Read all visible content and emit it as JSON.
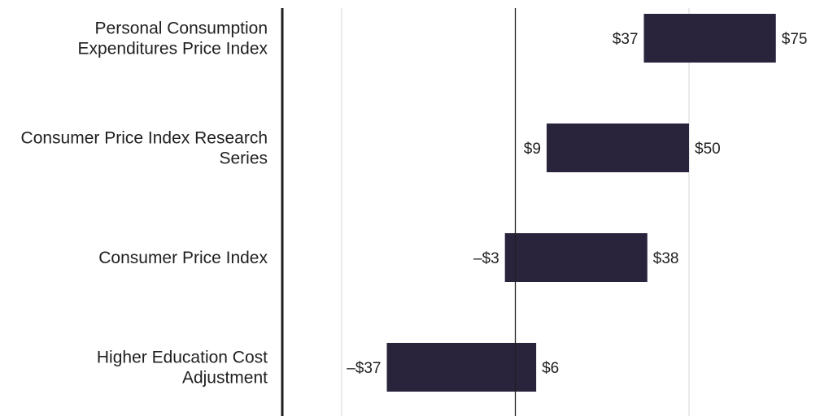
{
  "chart_data": {
    "type": "bar",
    "orientation": "horizontal",
    "subtype": "range",
    "categories": [
      [
        "Personal Consumption",
        "Expenditures Price Index"
      ],
      [
        "Consumer Price Index Research",
        "Series"
      ],
      [
        "Consumer Price Index"
      ],
      [
        "Higher Education Cost",
        "Adjustment"
      ]
    ],
    "ranges": [
      {
        "low": 37,
        "high": 75,
        "low_label": "$37",
        "high_label": "$75"
      },
      {
        "low": 9,
        "high": 50,
        "low_label": "$9",
        "high_label": "$50"
      },
      {
        "low": -3,
        "high": 38,
        "low_label": "–$3",
        "high_label": "$38"
      },
      {
        "low": -37,
        "high": 6,
        "low_label": "–$37",
        "high_label": "$6"
      }
    ],
    "xlim": [
      -50,
      92
    ],
    "gridlines": [
      -50,
      50
    ],
    "zero_line": 0,
    "grid": true,
    "bar_color": "#29243b",
    "title": "",
    "xlabel": "",
    "ylabel": ""
  }
}
